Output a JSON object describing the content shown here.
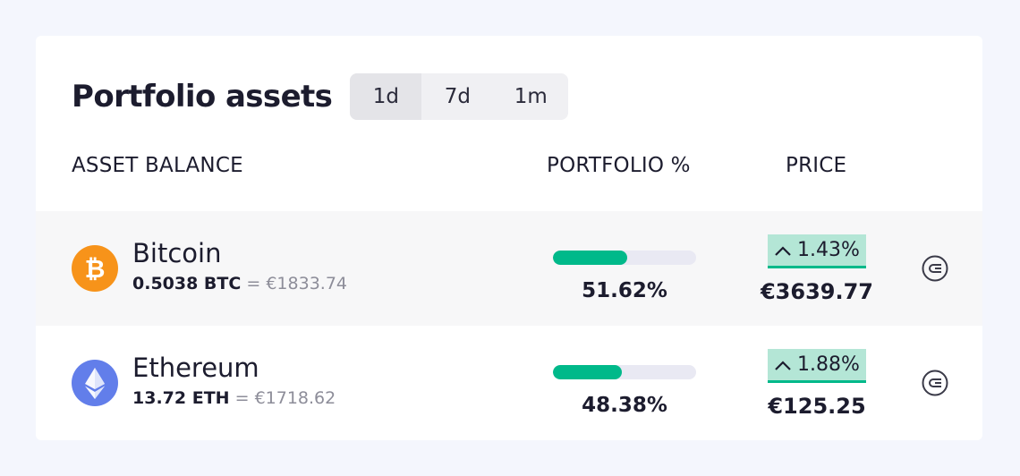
{
  "header": {
    "title": "Portfolio assets",
    "ranges": [
      {
        "label": "1d",
        "active": true
      },
      {
        "label": "7d",
        "active": false
      },
      {
        "label": "1m",
        "active": false
      }
    ]
  },
  "columns": {
    "asset_balance": "ASSET BALANCE",
    "portfolio": "PORTFOLIO %",
    "price": "PRICE"
  },
  "assets": [
    {
      "name": "Bitcoin",
      "icon": "bitcoin-icon",
      "amount": "0.5038 BTC",
      "value": "= €1833.74",
      "portfolio_fraction": 0.5162,
      "portfolio_label": "51.62%",
      "change": "1.43%",
      "price": "€3639.77",
      "color": "#f7931a"
    },
    {
      "name": "Ethereum",
      "icon": "ethereum-icon",
      "amount": "13.72 ETH",
      "value": "= €1718.62",
      "portfolio_fraction": 0.4838,
      "portfolio_label": "48.38%",
      "change": "1.88%",
      "price": "€125.25",
      "color": "#627eea"
    }
  ],
  "colors": {
    "accent_green": "#00b98a",
    "change_bg": "#b4e6d6",
    "page_bg": "#f4f6fd"
  }
}
